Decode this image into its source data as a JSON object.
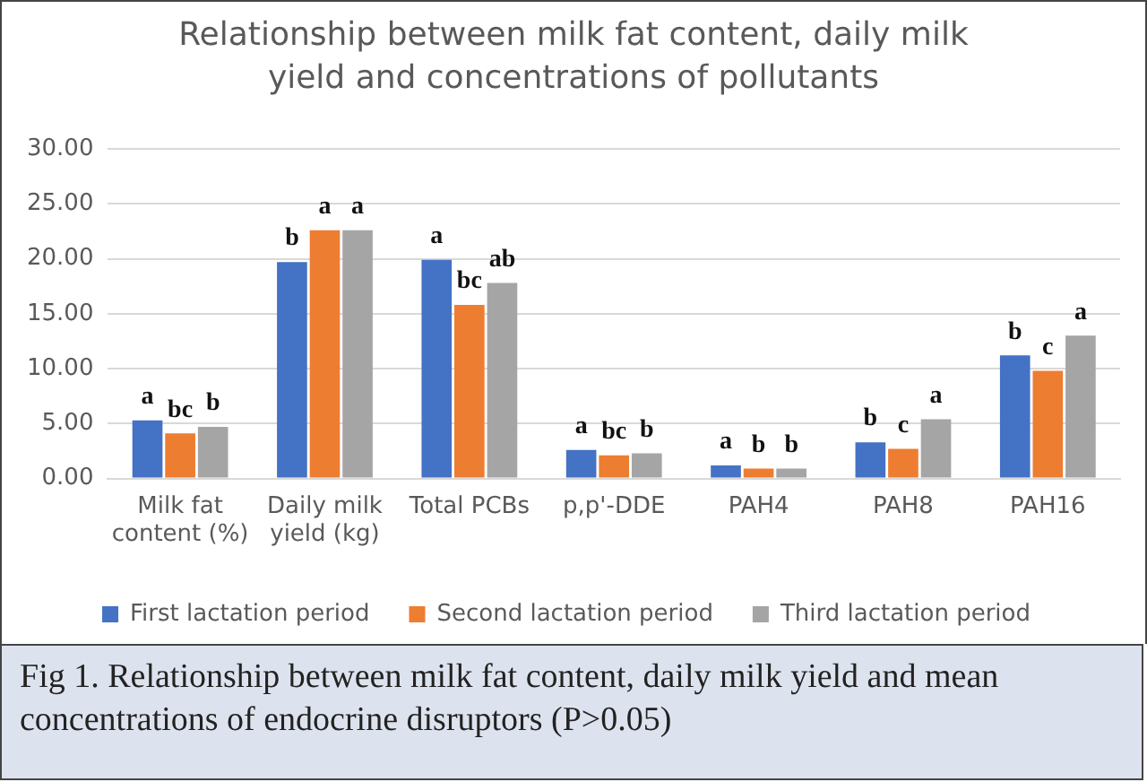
{
  "chart_data": {
    "type": "bar",
    "title": "Relationship between milk fat content, daily milk yield and concentrations of pollutants",
    "categories": [
      "Milk fat content (%)",
      "Daily milk yield (kg)",
      "Total PCBs",
      "p,p'-DDE",
      "PAH4",
      "PAH8",
      "PAH16"
    ],
    "series": [
      {
        "name": "First lactation period",
        "color": "#4472c4",
        "values": [
          5.3,
          19.7,
          19.9,
          2.6,
          1.2,
          3.3,
          11.2
        ],
        "value_labels": [
          "a",
          "b",
          "a",
          "a",
          "a",
          "b",
          "b"
        ]
      },
      {
        "name": "Second lactation period",
        "color": "#ed7d31",
        "values": [
          4.1,
          22.6,
          15.8,
          2.1,
          0.9,
          2.7,
          9.8
        ],
        "value_labels": [
          "bc",
          "a",
          "bc",
          "bc",
          "b",
          "c",
          "c"
        ]
      },
      {
        "name": "Third lactation period",
        "color": "#a5a5a5",
        "values": [
          4.7,
          22.6,
          17.8,
          2.3,
          0.9,
          5.4,
          13.0
        ],
        "value_labels": [
          "b",
          "a",
          "ab",
          "b",
          "b",
          "a",
          "a"
        ]
      }
    ],
    "ylim": [
      0,
      30
    ],
    "yticks": [
      {
        "value": 0,
        "label": "0.00"
      },
      {
        "value": 5,
        "label": "5.00"
      },
      {
        "value": 10,
        "label": "10.00"
      },
      {
        "value": 15,
        "label": "15.00"
      },
      {
        "value": 20,
        "label": "20.00"
      },
      {
        "value": 25,
        "label": "25.00"
      },
      {
        "value": 30,
        "label": "30.00"
      }
    ],
    "grid": "y",
    "legend": "bottom",
    "annotations": [
      "Fig 1. Relationship between milk fat content, daily milk yield and mean concentrations of endocrine disruptors (P>0.05)"
    ]
  }
}
